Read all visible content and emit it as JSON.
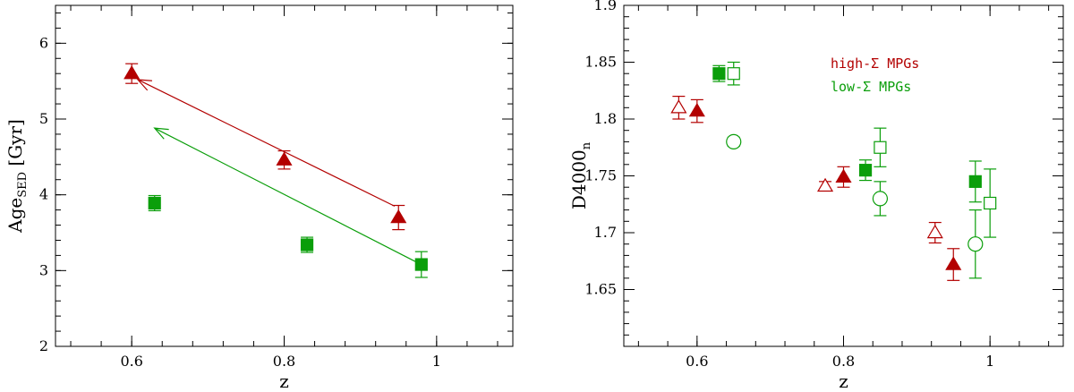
{
  "chart_data": [
    {
      "type": "scatter",
      "xlabel": "z",
      "ylabel": "Age",
      "ylabel_sub": "SED",
      "ylabel_unit": " [Gyr]",
      "xlim": [
        0.5,
        1.1
      ],
      "ylim": [
        2,
        6.5
      ],
      "xticks": [
        0.6,
        0.8,
        1
      ],
      "xtick_labels": [
        "0.6",
        "0.8",
        "1"
      ],
      "yticks": [
        2,
        3,
        4,
        5,
        6
      ],
      "ytick_labels": [
        "2",
        "3",
        "4",
        "5",
        "6"
      ],
      "grid": false,
      "series": [
        {
          "marker": "filled-triangle",
          "color": "#b30000",
          "points": [
            {
              "x": 0.6,
              "y": 5.6,
              "err": 0.13
            },
            {
              "x": 0.8,
              "y": 4.46,
              "err": 0.12
            },
            {
              "x": 0.95,
              "y": 3.7,
              "err": 0.16
            }
          ]
        },
        {
          "marker": "filled-square",
          "color": "#0a9e0a",
          "points": [
            {
              "x": 0.63,
              "y": 3.89,
              "err": 0.1
            },
            {
              "x": 0.83,
              "y": 3.34,
              "err": 0.1
            },
            {
              "x": 0.98,
              "y": 3.08,
              "err": 0.17
            }
          ]
        }
      ],
      "arrows": [
        {
          "color": "#b30000",
          "from": [
            0.945,
            3.85
          ],
          "to": [
            0.608,
            5.52
          ]
        },
        {
          "color": "#0a9e0a",
          "from": [
            0.972,
            3.12
          ],
          "to": [
            0.63,
            4.88
          ]
        }
      ]
    },
    {
      "type": "scatter",
      "xlabel": "z",
      "ylabel": "D4000",
      "ylabel_sub": "n",
      "xlim": [
        0.5,
        1.1
      ],
      "ylim": [
        1.6,
        1.9
      ],
      "xticks": [
        0.6,
        0.8,
        1
      ],
      "xtick_labels": [
        "0.6",
        "0.8",
        "1"
      ],
      "yticks": [
        1.65,
        1.7,
        1.75,
        1.8,
        1.85,
        1.9
      ],
      "ytick_labels": [
        "1.65",
        "1.7",
        "1.75",
        "1.8",
        "1.85",
        "1.9"
      ],
      "grid": false,
      "legend": {
        "placement": "top-right",
        "entries": [
          {
            "label": "high-Σ MPGs",
            "color": "#b30000"
          },
          {
            "label": "low-Σ MPGs",
            "color": "#0a9e0a"
          }
        ]
      },
      "series": [
        {
          "marker": "filled-triangle",
          "color": "#b30000",
          "points": [
            {
              "x": 0.6,
              "y": 1.807,
              "err": 0.01
            },
            {
              "x": 0.8,
              "y": 1.749,
              "err": 0.009
            },
            {
              "x": 0.95,
              "y": 1.672,
              "err": 0.014
            }
          ]
        },
        {
          "marker": "open-triangle",
          "color": "#b30000",
          "points": [
            {
              "x": 0.575,
              "y": 1.81,
              "err": 0.01
            },
            {
              "x": 0.775,
              "y": 1.741,
              "err": 0.004
            },
            {
              "x": 0.925,
              "y": 1.7,
              "err": 0.009
            }
          ]
        },
        {
          "marker": "filled-square",
          "color": "#0a9e0a",
          "points": [
            {
              "x": 0.63,
              "y": 1.84,
              "err": 0.007
            },
            {
              "x": 0.83,
              "y": 1.755,
              "err": 0.009
            },
            {
              "x": 0.98,
              "y": 1.745,
              "err": 0.018
            }
          ]
        },
        {
          "marker": "open-square",
          "color": "#0a9e0a",
          "points": [
            {
              "x": 0.65,
              "y": 1.84,
              "err": 0.01
            },
            {
              "x": 0.85,
              "y": 1.775,
              "err": 0.017
            },
            {
              "x": 1.0,
              "y": 1.726,
              "err": 0.03
            }
          ]
        },
        {
          "marker": "open-circle",
          "color": "#0a9e0a",
          "points": [
            {
              "x": 0.65,
              "y": 1.78,
              "err": 0.004
            },
            {
              "x": 0.85,
              "y": 1.73,
              "err": 0.015
            },
            {
              "x": 0.98,
              "y": 1.69,
              "err": 0.03
            }
          ]
        }
      ]
    }
  ]
}
